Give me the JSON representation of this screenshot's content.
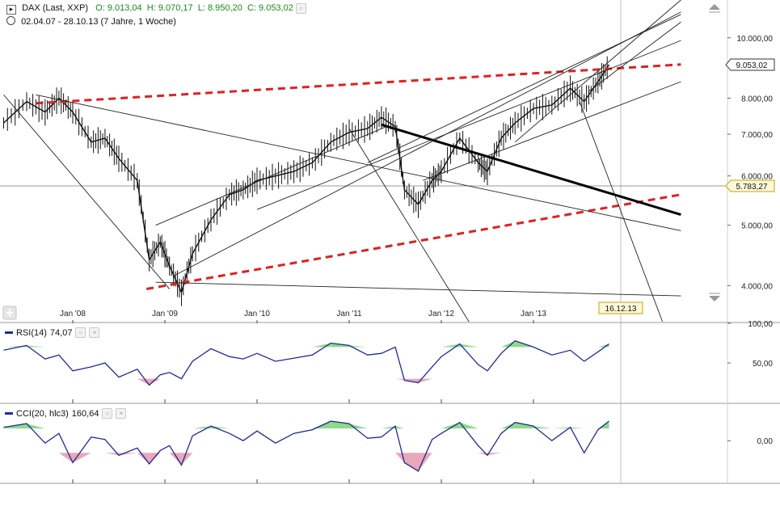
{
  "header": {
    "symbol": "DAX (Last, XXP)",
    "open": "O: 9.013,04",
    "high": "H: 9.070,17",
    "low": "L: 8.950,20",
    "close": "C: 9.053,02",
    "range": "02.04.07 - 28.10.13 (7 Jahre, 1 Woche)"
  },
  "chart_data": [
    {
      "type": "candlestick",
      "title": "DAX (Last, XXP)",
      "x_tick_labels": [
        "Jan '08",
        "Jan '09",
        "Jan '10",
        "Jan '11",
        "Jan '12",
        "Jan '13"
      ],
      "y_tick_labels": [
        "4.000,00",
        "5.000,00",
        "6.000,00",
        "7.000,00",
        "8.000,00",
        "10.000,00"
      ],
      "y_scale": "log",
      "ylim": [
        3500,
        11500
      ],
      "markers": [
        {
          "label": "9.053,02",
          "value": 9053.02
        },
        {
          "label": "5.783,27",
          "value": 5783.27
        }
      ],
      "cursor_date_label": "16.12.13",
      "close_series": {
        "x_year": [
          2007.25,
          2007.5,
          2007.7,
          2007.85,
          2008.0,
          2008.2,
          2008.35,
          2008.5,
          2008.7,
          2008.83,
          2008.95,
          2009.05,
          2009.18,
          2009.3,
          2009.5,
          2009.7,
          2009.85,
          2010.0,
          2010.2,
          2010.4,
          2010.6,
          2010.8,
          2011.0,
          2011.2,
          2011.35,
          2011.5,
          2011.6,
          2011.75,
          2011.9,
          2012.0,
          2012.2,
          2012.4,
          2012.5,
          2012.65,
          2012.8,
          2013.0,
          2013.2,
          2013.4,
          2013.55,
          2013.7,
          2013.82
        ],
        "close": [
          7300,
          7900,
          7600,
          8000,
          7600,
          6800,
          6900,
          6400,
          5900,
          4400,
          4700,
          4300,
          3900,
          4500,
          5100,
          5600,
          5700,
          5900,
          6000,
          6100,
          6300,
          6800,
          7050,
          7150,
          7450,
          7200,
          5700,
          5400,
          5900,
          6100,
          6900,
          6300,
          6100,
          6900,
          7300,
          7700,
          7800,
          8300,
          7900,
          8500,
          9053
        ]
      },
      "overlays": [
        {
          "style": "red-dashed",
          "x_year": [
            2007.6,
            2014.6
          ],
          "y": [
            7850,
            9060
          ]
        },
        {
          "style": "red-dashed",
          "x_year": [
            2008.8,
            2014.6
          ],
          "y": [
            3950,
            5600
          ]
        },
        {
          "style": "thick-black",
          "x_year": [
            2011.35,
            2014.6
          ],
          "y": [
            7250,
            5200
          ]
        }
      ]
    },
    {
      "type": "line",
      "name": "RSI(14)",
      "title": "RSI(14)",
      "current_value": "74,07",
      "y_tick_labels": [
        "100,00",
        "50,00"
      ],
      "ylim": [
        0,
        100
      ],
      "thresholds": [
        70,
        30
      ],
      "x_year": [
        2007.25,
        2007.5,
        2007.7,
        2007.85,
        2008.0,
        2008.2,
        2008.35,
        2008.5,
        2008.7,
        2008.83,
        2008.95,
        2009.05,
        2009.18,
        2009.3,
        2009.5,
        2009.7,
        2009.85,
        2010.0,
        2010.2,
        2010.4,
        2010.6,
        2010.8,
        2011.0,
        2011.2,
        2011.35,
        2011.5,
        2011.6,
        2011.75,
        2011.9,
        2012.0,
        2012.2,
        2012.4,
        2012.5,
        2012.65,
        2012.8,
        2013.0,
        2013.2,
        2013.4,
        2013.55,
        2013.7,
        2013.82
      ],
      "values": [
        66,
        72,
        55,
        60,
        40,
        45,
        50,
        32,
        42,
        22,
        35,
        38,
        30,
        52,
        68,
        58,
        55,
        62,
        52,
        56,
        60,
        75,
        72,
        60,
        62,
        70,
        28,
        25,
        45,
        58,
        74,
        48,
        40,
        62,
        78,
        70,
        60,
        66,
        52,
        64,
        74
      ]
    },
    {
      "type": "line",
      "name": "CCI(20, hlc3)",
      "title": "CCI(20, hlc3)",
      "current_value": "160,64",
      "y_tick_labels": [
        "0,00"
      ],
      "ylim": [
        -350,
        300
      ],
      "thresholds": [
        100,
        -100
      ],
      "x_year": [
        2007.25,
        2007.5,
        2007.7,
        2007.85,
        2008.0,
        2008.2,
        2008.35,
        2008.5,
        2008.7,
        2008.83,
        2008.95,
        2009.05,
        2009.18,
        2009.3,
        2009.5,
        2009.7,
        2009.85,
        2010.0,
        2010.2,
        2010.4,
        2010.6,
        2010.8,
        2011.0,
        2011.2,
        2011.35,
        2011.5,
        2011.6,
        2011.75,
        2011.9,
        2012.0,
        2012.2,
        2012.4,
        2012.5,
        2012.65,
        2012.8,
        2013.0,
        2013.2,
        2013.4,
        2013.55,
        2013.7,
        2013.82
      ],
      "values": [
        110,
        140,
        -20,
        60,
        -180,
        30,
        10,
        -120,
        -60,
        -190,
        -80,
        -40,
        -200,
        40,
        120,
        60,
        0,
        80,
        -20,
        60,
        90,
        160,
        140,
        20,
        30,
        120,
        -180,
        -250,
        10,
        60,
        150,
        -40,
        -120,
        60,
        150,
        120,
        0,
        110,
        -100,
        90,
        161
      ]
    }
  ],
  "colors": {
    "price": "#111111",
    "indicator_line": "#1f2a9c",
    "overbought_fill": "#8fd98a",
    "oversold_fill": "#e8a8b8",
    "trend_red": "#e02020",
    "grid": "#c8c8c8"
  },
  "controls": {
    "expand_icon": "plus-square-icon",
    "scroll_up_icon": "scroll-up-arrow-icon",
    "scroll_down_icon": "scroll-down-arrow-icon"
  }
}
